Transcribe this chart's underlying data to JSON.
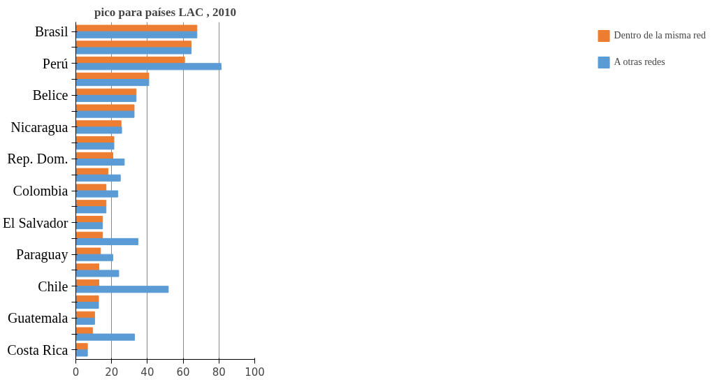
{
  "chart_data": {
    "type": "bar",
    "orientation": "horizontal",
    "title": "pico para países LAC , 2010",
    "categories": [
      "Brasil",
      null,
      "Perú",
      null,
      "Belice",
      null,
      "Nicaragua",
      null,
      "Rep. Dom.",
      null,
      "Colombia",
      null,
      "El Salvador",
      null,
      "Paraguay",
      null,
      "Chile",
      null,
      "Guatemala",
      null,
      "Costa Rica"
    ],
    "series": [
      {
        "name": "Dentro de la misma red",
        "color": "#ed7d31",
        "values": [
          67.7,
          64.5,
          60.8,
          40.8,
          33.7,
          32.6,
          25.3,
          21.3,
          20.7,
          18.0,
          16.9,
          16.9,
          14.9,
          14.9,
          13.8,
          12.9,
          12.9,
          12.7,
          10.5,
          9.3,
          6.5
        ]
      },
      {
        "name": "A otras redes",
        "color": "#5b9bd5",
        "values": [
          67.7,
          64.5,
          81.2,
          40.8,
          33.7,
          32.6,
          25.6,
          21.3,
          27.1,
          24.9,
          23.5,
          16.9,
          14.9,
          34.8,
          20.7,
          24.0,
          51.7,
          12.7,
          10.5,
          32.8,
          6.5
        ]
      }
    ],
    "xlim": [
      0,
      100
    ],
    "xticks": [
      0,
      20,
      40,
      60,
      80,
      100
    ],
    "grid": "x",
    "legend": "right"
  }
}
